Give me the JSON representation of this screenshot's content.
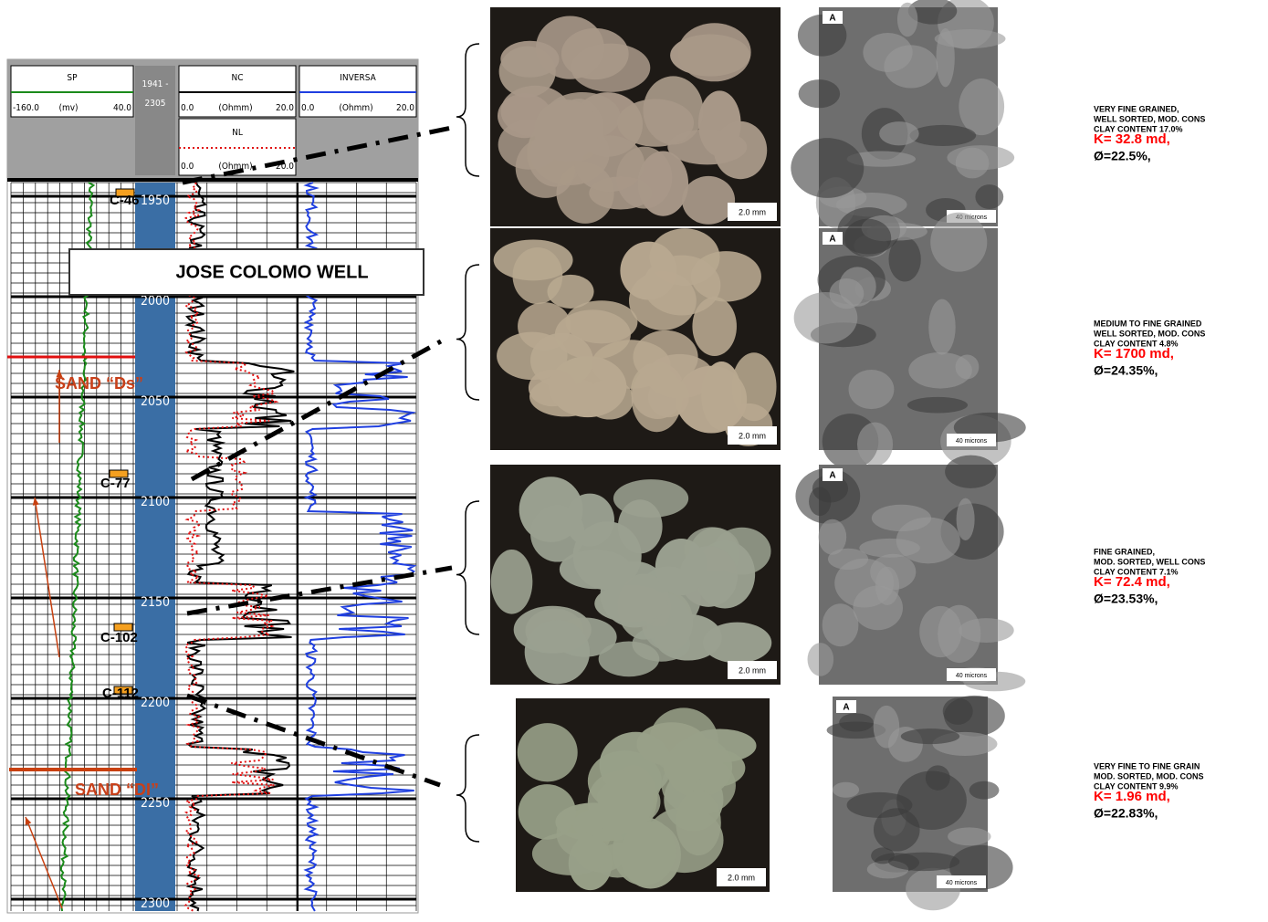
{
  "log_header": {
    "sp": {
      "name": "SP",
      "min": "-160.0",
      "unit": "(mv)",
      "max": "40.0"
    },
    "depth_range": [
      "1941 -",
      "2305"
    ],
    "nc": {
      "name": "NC",
      "min": "0.0",
      "unit": "(Ohmm)",
      "max": "20.0"
    },
    "nl": {
      "name": "NL",
      "min": "0.0",
      "unit": "(Ohmm)",
      "max": "20.0"
    },
    "inversa": {
      "name": "INVERSA",
      "min": "0.0",
      "unit": "(Ohmm)",
      "max": "20.0"
    }
  },
  "depth_labels": [
    1950,
    2000,
    2050,
    2100,
    2150,
    2200,
    2250,
    2300
  ],
  "well_title": "JOSE COLOMO  WELL",
  "cores": [
    "C-46",
    "C-77",
    "C-102",
    "C-112"
  ],
  "sands": [
    "SAND “Ds”",
    "SAND “DI”"
  ],
  "samples": [
    {
      "photo_scale": "2.0 mm",
      "sem_label": "A",
      "sem_scale": "40 microns",
      "description": [
        "VERY FINE GRAINED,",
        "WELL SORTED, MOD. CONS",
        "CLAY CONTENT 17.0%"
      ],
      "permeability": "K= 32.8 md,",
      "porosity": "Ø=22.5%,"
    },
    {
      "photo_scale": "2.0 mm",
      "sem_label": "A",
      "sem_scale": "40 microns",
      "description": [
        "MEDIUM TO FINE GRAINED",
        "WELL SORTED, MOD. CONS",
        "CLAY CONTENT 4.8%"
      ],
      "permeability": "K= 1700 md,",
      "porosity": "Ø=24.35%,"
    },
    {
      "photo_scale": "2.0 mm",
      "sem_label": "A",
      "sem_scale": "40 microns",
      "description": [
        "FINE GRAINED,",
        "MOD. SORTED, WELL CONS",
        "CLAY CONTENT 7.1%"
      ],
      "permeability": "K= 72.4 md,",
      "porosity": "Ø=23.53%,"
    },
    {
      "photo_scale": "2.0 mm",
      "sem_label": "A",
      "sem_scale": "40 microns",
      "description": [
        "VERY FINE TO FINE GRAIN",
        "MOD. SORTED, MOD. CONS",
        "CLAY CONTENT 9.9%"
      ],
      "permeability": "K= 1.96 md,",
      "porosity": "Ø=22.83%,"
    }
  ]
}
